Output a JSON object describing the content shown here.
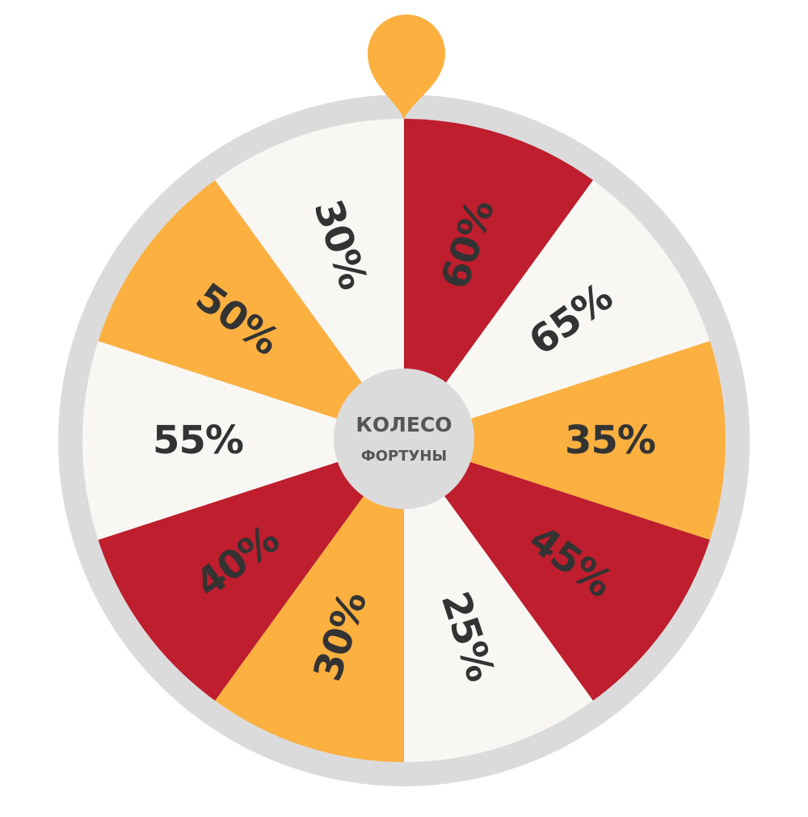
{
  "wheel": {
    "hub": {
      "title": "КОЛЕСО",
      "subtitle": "ФОРТУНЫ"
    },
    "segments": [
      {
        "label": "60%",
        "color": "#BE1E2D"
      },
      {
        "label": "65%",
        "color": "#F8F7F4"
      },
      {
        "label": "35%",
        "color": "#FBB040"
      },
      {
        "label": "45%",
        "color": "#BE1E2D"
      },
      {
        "label": "25%",
        "color": "#F8F7F4"
      },
      {
        "label": "30%",
        "color": "#FBB040"
      },
      {
        "label": "40%",
        "color": "#BE1E2D"
      },
      {
        "label": "55%",
        "color": "#F8F7F4"
      },
      {
        "label": "50%",
        "color": "#FBB040"
      },
      {
        "label": "30%",
        "color": "#F8F7F4"
      }
    ],
    "colors": {
      "rim": "#DCDBDC",
      "hub": "#DCDBDC",
      "pointer": "#FBB040",
      "label_text": "#333333",
      "hub_text": "#555555"
    }
  }
}
